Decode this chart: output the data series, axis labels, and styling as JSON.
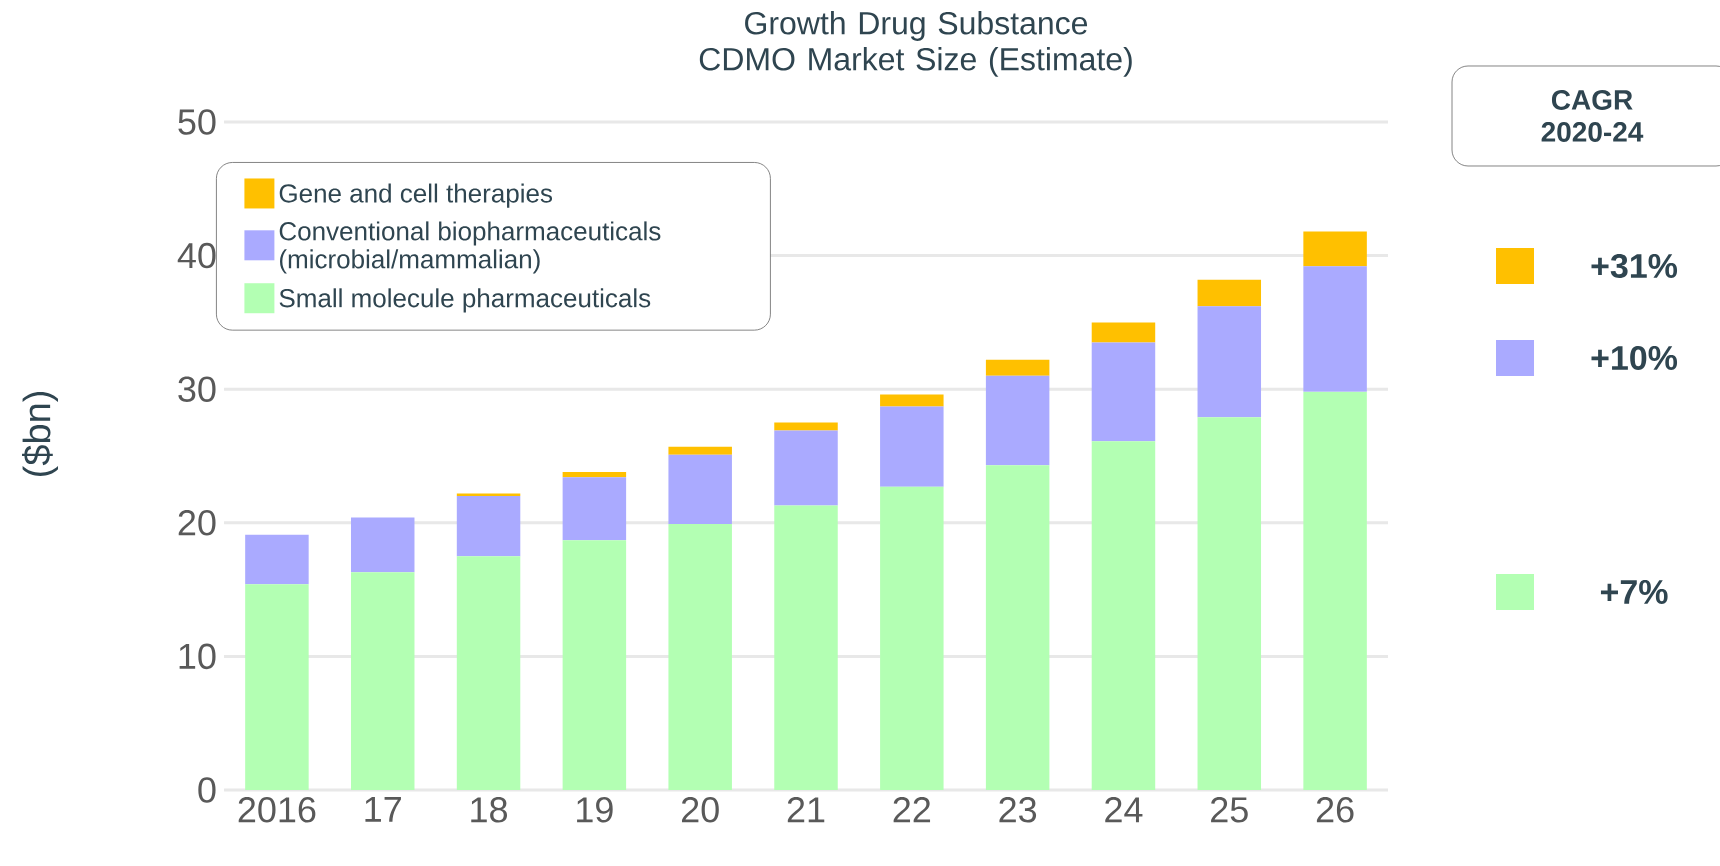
{
  "chart_data": {
    "type": "bar",
    "title": "Growth Drug Substance CDMO Market Size (Estimate)",
    "ylabel": "($bn)",
    "categories": [
      "2016",
      "17",
      "18",
      "19",
      "20",
      "21",
      "22",
      "23",
      "24",
      "25",
      "26"
    ],
    "stacked": true,
    "series": [
      {
        "name": "Small molecule pharmaceuticals",
        "color": "#b3ffb3",
        "values": [
          15.4,
          16.3,
          17.5,
          18.7,
          19.9,
          21.3,
          22.7,
          24.3,
          26.1,
          27.9,
          29.8
        ]
      },
      {
        "name": "Conventional biopharmaceuticals (microbial/mammalian)",
        "color": "#aaaaff",
        "values": [
          3.7,
          4.1,
          4.5,
          4.7,
          5.2,
          5.6,
          6.0,
          6.7,
          7.4,
          8.3,
          9.4
        ]
      },
      {
        "name": "Gene and cell therapies",
        "color": "#ffc000",
        "values": [
          0,
          0,
          0.2,
          0.4,
          0.6,
          0.6,
          0.9,
          1.2,
          1.5,
          2.0,
          2.6
        ]
      }
    ],
    "ylim": [
      0,
      50
    ],
    "yticks": [
      0,
      10,
      20,
      30,
      40,
      50
    ],
    "grid": "y",
    "legend": "top left",
    "annotations": [
      "CAGR 2020-24",
      "+31%",
      "+10%",
      "+7%"
    ]
  }
}
